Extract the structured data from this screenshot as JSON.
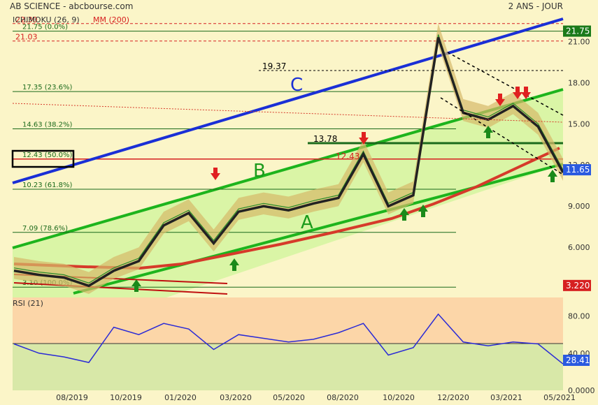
{
  "header": {
    "title": "AB SCIENCE - abcbourse.com",
    "period": "2 ANS - JOUR"
  },
  "legend": {
    "ichimoku": "ICHIMOKU (26, 9)",
    "mm": "MM (200)"
  },
  "colors": {
    "background": "#fbf5c8",
    "channel_fill": "#d4f5a0",
    "channel_line": "#1db41d",
    "trend_c": "#1a2fd6",
    "mm200": "#d63a2a",
    "price_line": "#222222",
    "kumo": "#d6b96a",
    "rsi_line": "#2a2ad6",
    "arrow_up": "#1a8a1a",
    "arrow_down": "#e02020"
  },
  "chart_data": [
    {
      "type": "line",
      "x_ticks": [
        "08/2019",
        "10/2019",
        "01/2020",
        "03/2020",
        "05/2020",
        "08/2020",
        "10/2020",
        "12/2020",
        "03/2021",
        "05/2021"
      ],
      "y_ticks": [
        "21.00",
        "18.00",
        "15.00",
        "12.00",
        "9.000",
        "6.000"
      ],
      "ylim": [
        2.5,
        23.0
      ],
      "price_series": {
        "name": "",
        "x": [
          "2019-07",
          "2019-08",
          "2019-09",
          "2019-10",
          "2019-11",
          "2019-12",
          "2020-01",
          "2020-02",
          "2020-03",
          "2020-04",
          "2020-05",
          "2020-06",
          "2020-07",
          "2020-08",
          "2020-09",
          "2020-10",
          "2020-11",
          "2020-12",
          "2021-01",
          "2021-02",
          "2021-03",
          "2021-04",
          "2021-05"
        ],
        "y": [
          4.5,
          4.2,
          4.0,
          3.4,
          4.5,
          5.2,
          7.8,
          8.7,
          6.5,
          8.8,
          9.2,
          8.9,
          9.4,
          9.8,
          13.0,
          9.2,
          10.0,
          21.5,
          16.0,
          15.5,
          16.5,
          15.0,
          11.65
        ]
      },
      "fibonacci_levels": [
        {
          "label": "21.75  (0.0%)",
          "value": 21.75
        },
        {
          "label": "17.35  (23.6%)",
          "value": 17.35
        },
        {
          "label": "14.63  (38.2%)",
          "value": 14.63
        },
        {
          "label": "12.43  (50.0%)",
          "value": 12.43
        },
        {
          "label": "10.23  (61.8%)",
          "value": 10.23
        },
        {
          "label": "7.09  (78.6%)",
          "value": 7.09
        },
        {
          "label": "3.10  (100.0%)",
          "value": 3.1
        }
      ],
      "red_dashed_levels": [
        {
          "label": "22.30",
          "value": 22.3
        },
        {
          "label": "21.03",
          "value": 21.03
        }
      ],
      "annotations": {
        "level_19_37": "19.37",
        "level_13_78": "13.78",
        "level_12_43": "12.43",
        "label_a": "A",
        "label_b": "B",
        "label_c": "C"
      },
      "right_badges": [
        {
          "text": "21.75",
          "value": 21.75,
          "color": "#1a7a1a"
        },
        {
          "text": "11.65",
          "value": 11.65,
          "color": "#2a5ae0"
        },
        {
          "text": "3.220",
          "value": 3.22,
          "color": "#d62020"
        }
      ]
    },
    {
      "type": "line",
      "title": "RSI (21)",
      "y_ticks": [
        "80.00",
        "40.00",
        "0.0000"
      ],
      "ylim": [
        0,
        100
      ],
      "badge": "28.41",
      "series": [
        {
          "name": "",
          "x": [
            "2019-07",
            "2019-08",
            "2019-09",
            "2019-10",
            "2019-11",
            "2019-12",
            "2020-01",
            "2020-02",
            "2020-03",
            "2020-04",
            "2020-05",
            "2020-06",
            "2020-07",
            "2020-08",
            "2020-09",
            "2020-10",
            "2020-11",
            "2020-12",
            "2021-01",
            "2021-02",
            "2021-03",
            "2021-04",
            "2021-05"
          ],
          "values": [
            50,
            40,
            36,
            30,
            68,
            60,
            72,
            66,
            44,
            60,
            56,
            52,
            55,
            62,
            72,
            38,
            46,
            82,
            52,
            48,
            52,
            50,
            28.41
          ]
        }
      ]
    }
  ]
}
